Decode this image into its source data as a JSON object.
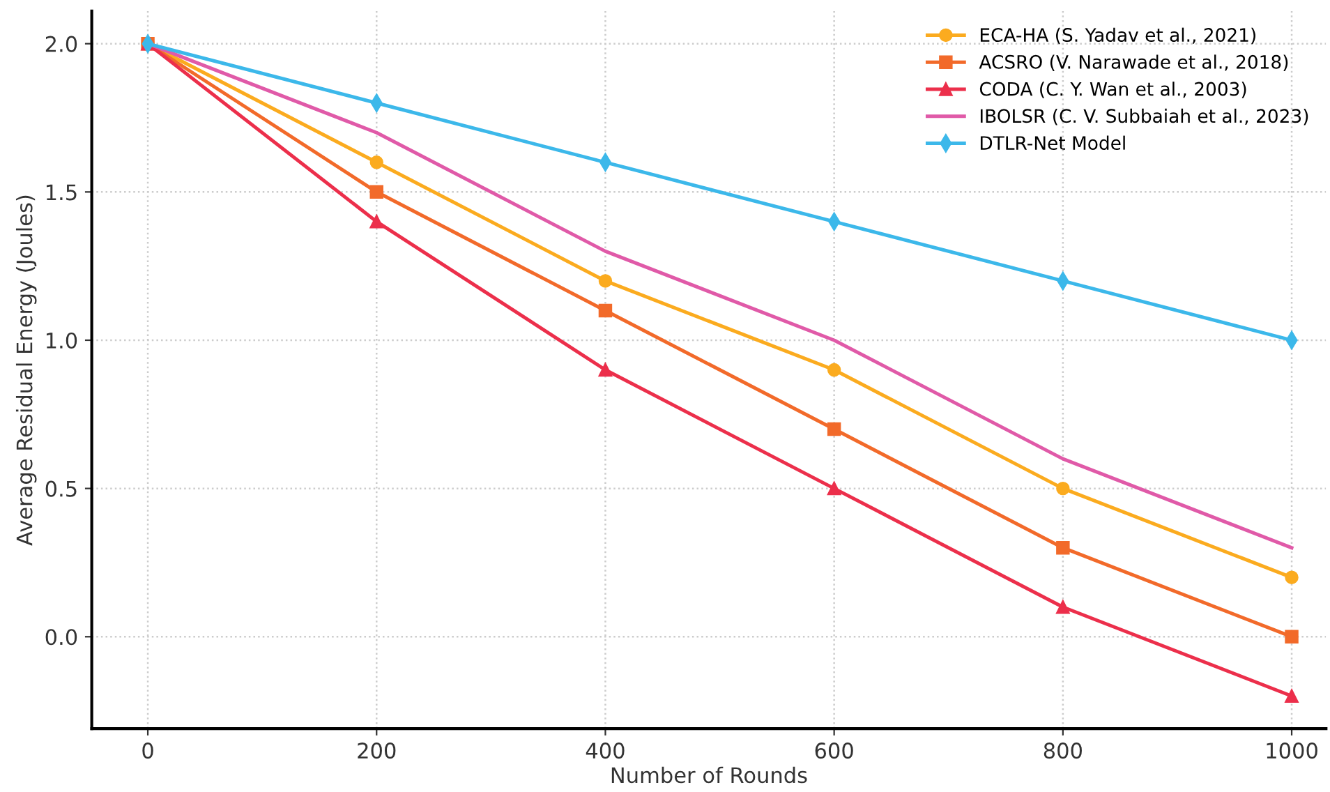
{
  "chart_data": {
    "type": "line",
    "xlabel": "Number of Rounds",
    "ylabel": "Average Residual Energy (Joules)",
    "x": [
      0,
      200,
      400,
      600,
      800,
      1000
    ],
    "series": [
      {
        "name": "ECA-HA (S. Yadav et al., 2021)",
        "color": "#fbab1f",
        "marker": "circle",
        "values": [
          2.0,
          1.6,
          1.2,
          0.9,
          0.5,
          0.2
        ]
      },
      {
        "name": "ACSRO (V. Narawade et al., 2018)",
        "color": "#f26a2a",
        "marker": "square",
        "values": [
          2.0,
          1.5,
          1.1,
          0.7,
          0.3,
          0.0
        ]
      },
      {
        "name": "CODA (C. Y. Wan et al., 2003)",
        "color": "#ec2f4b",
        "marker": "triangle",
        "values": [
          2.0,
          1.4,
          0.9,
          0.5,
          0.1,
          -0.2
        ]
      },
      {
        "name": "IBOLSR (C. V. Subbaiah et al., 2023)",
        "color": "#e05aa8",
        "marker": "none",
        "values": [
          2.0,
          1.7,
          1.3,
          1.0,
          0.6,
          0.3
        ]
      },
      {
        "name": "DTLR-Net Model",
        "color": "#3cb8ea",
        "marker": "diamond",
        "values": [
          2.0,
          1.8,
          1.6,
          1.4,
          1.2,
          1.0
        ]
      }
    ],
    "xlim": [
      -49,
      1030
    ],
    "ylim": [
      -0.31,
      2.11
    ],
    "xticks": [
      0,
      200,
      400,
      600,
      800,
      1000
    ],
    "yticks": [
      {
        "value": 0,
        "label": "0.0"
      },
      {
        "value": 0.5,
        "label": "0.5"
      },
      {
        "value": 1,
        "label": "1.0"
      },
      {
        "value": 1.5,
        "label": "1.5"
      },
      {
        "value": 2,
        "label": "2.0"
      }
    ],
    "grid": true,
    "legend": "top right",
    "line_style": "solid"
  }
}
